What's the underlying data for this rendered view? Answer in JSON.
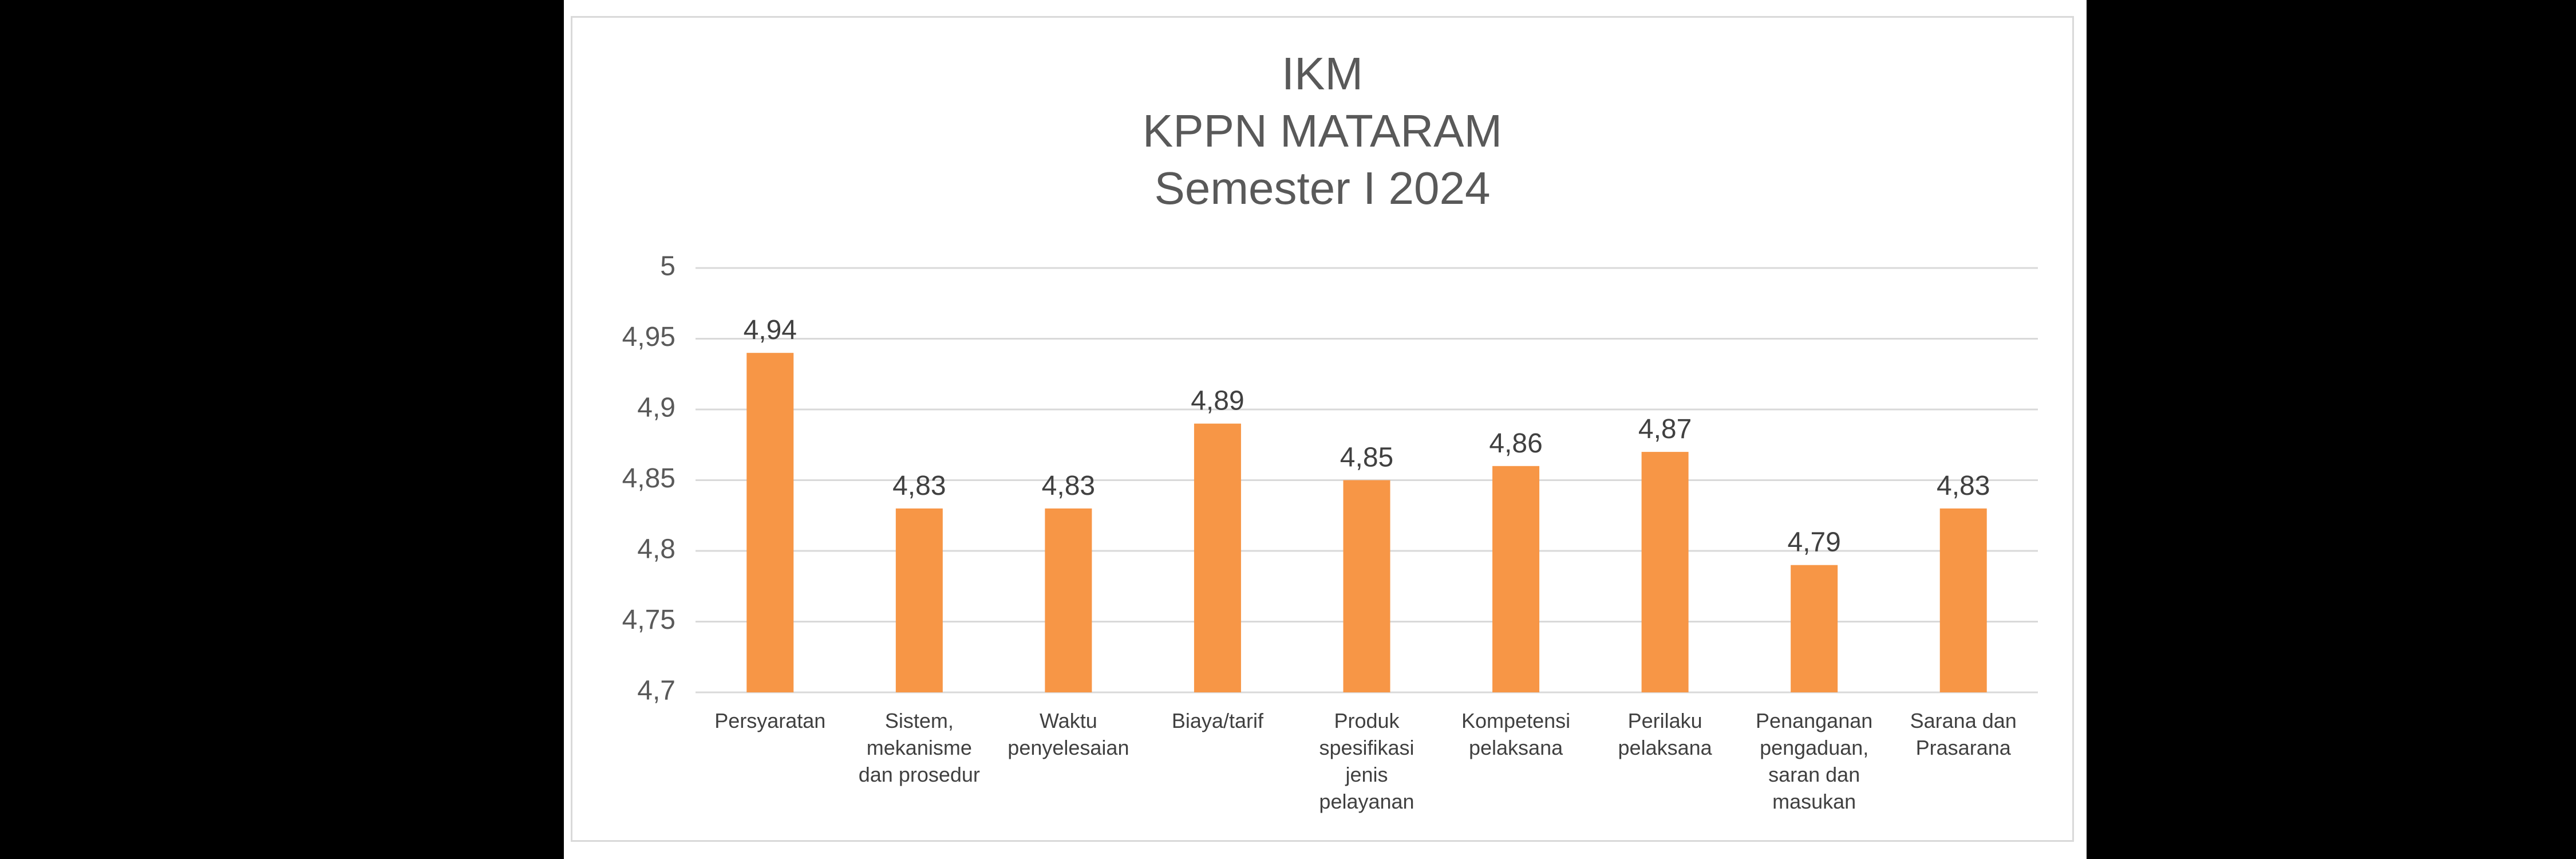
{
  "chart_data": {
    "type": "bar",
    "title_lines": [
      "IKM",
      "KPPN MATARAM",
      "Semester I 2024"
    ],
    "categories": [
      [
        "Persyaratan"
      ],
      [
        "Sistem,",
        "mekanisme",
        "dan prosedur"
      ],
      [
        "Waktu",
        "penyelesaian"
      ],
      [
        "Biaya/tarif"
      ],
      [
        "Produk",
        "spesifikasi",
        "jenis",
        "pelayanan"
      ],
      [
        "Kompetensi",
        "pelaksana"
      ],
      [
        "Perilaku",
        "pelaksana"
      ],
      [
        "Penanganan",
        "pengaduan,",
        "saran dan",
        "masukan"
      ],
      [
        "Sarana dan",
        "Prasarana"
      ]
    ],
    "values": [
      4.94,
      4.83,
      4.83,
      4.89,
      4.85,
      4.86,
      4.87,
      4.79,
      4.83
    ],
    "value_labels": [
      "4,94",
      "4,83",
      "4,83",
      "4,89",
      "4,85",
      "4,86",
      "4,87",
      "4,79",
      "4,83"
    ],
    "ylim": [
      4.7,
      5
    ],
    "yticks": [
      5,
      4.95,
      4.9,
      4.85,
      4.8,
      4.75,
      4.7
    ],
    "ytick_labels": [
      "5",
      "4,95",
      "4,9",
      "4,85",
      "4,8",
      "4,75",
      "4,7"
    ],
    "grid": true,
    "bar_color": "#F79646",
    "grid_color": "#D9D9D9"
  }
}
